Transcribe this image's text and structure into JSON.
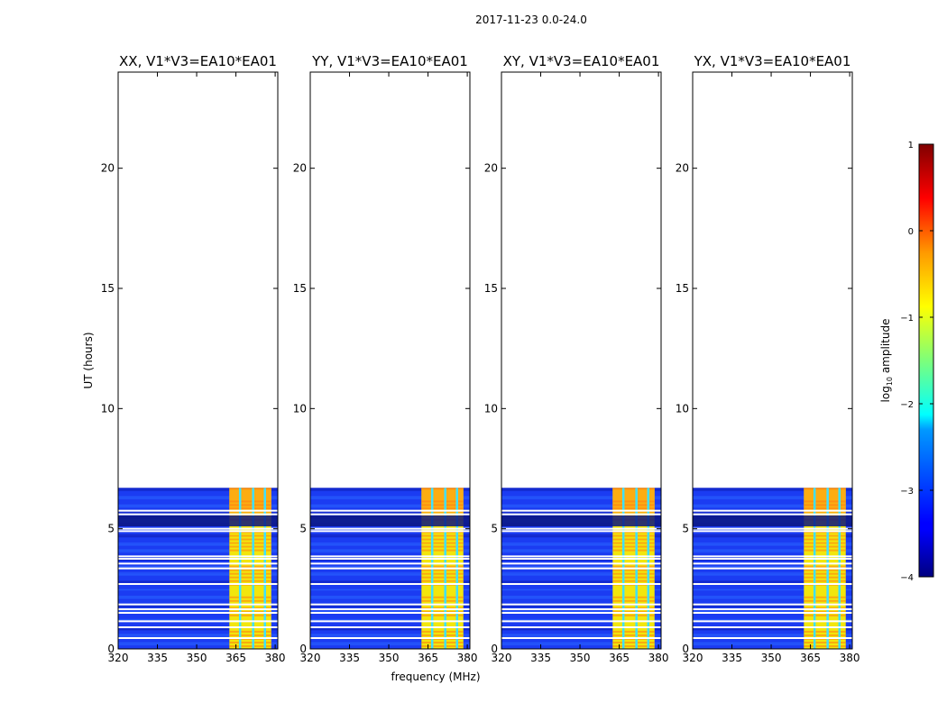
{
  "suptitle": "2017-11-23 0.0-24.0",
  "chart_data": {
    "type": "heatmap",
    "xlabel": "frequency (MHz)",
    "ylabel": "UT (hours)",
    "xlim": [
      320,
      381
    ],
    "ylim": [
      0,
      24
    ],
    "xticks": [
      320,
      335,
      350,
      365,
      380
    ],
    "yticks": [
      0,
      5,
      10,
      15,
      20
    ],
    "data_time_range_hours": [
      0,
      6.7
    ],
    "strong_signal_band_mhz": [
      363.5,
      380
    ],
    "blank_rows_ut_hours": [
      0.45,
      0.9,
      1.15,
      1.5,
      1.65,
      1.85,
      2.7,
      3.35,
      3.55,
      3.75,
      3.85,
      4.9,
      5.0,
      5.6,
      5.75
    ],
    "panels": [
      {
        "title": "XX, V1*V3=EA10*EA01",
        "band_mhz": [
          362.5,
          378.5
        ],
        "xtick_labels": [
          "320",
          "335",
          "350",
          "365",
          "380"
        ],
        "ytick_labels": [
          "0",
          "5",
          "10",
          "15",
          "20"
        ]
      },
      {
        "title": "YY, V1*V3=EA10*EA01",
        "band_mhz": [
          362.5,
          378.5
        ],
        "xtick_labels": [
          "320",
          "335",
          "350",
          "365",
          "380"
        ],
        "ytick_labels": [
          "0",
          "5",
          "10",
          "15",
          "20"
        ]
      },
      {
        "title": "XY, V1*V3=EA10*EA01",
        "band_mhz": [
          362.5,
          378.5
        ],
        "xtick_labels": [
          "320",
          "335",
          "350",
          "365",
          "380"
        ],
        "ytick_labels": [
          "0",
          "5",
          "10",
          "15",
          "20"
        ]
      },
      {
        "title": "YX, V1*V3=EA10*EA01",
        "band_mhz": [
          362.5,
          378.5
        ],
        "xtick_labels": [
          "320",
          "335",
          "350",
          "365",
          "380"
        ],
        "ytick_labels": [
          "0",
          "5",
          "10",
          "15",
          "20"
        ]
      }
    ],
    "colorbar": {
      "label": "log",
      "label_sub": "10",
      "label_rest": " amplitude",
      "colormap": "jet",
      "range": [
        -4,
        1
      ],
      "ticks": [
        1,
        0,
        -1,
        -2,
        -3,
        -4
      ],
      "tick_labels": [
        "1",
        "0",
        "−1",
        "−2",
        "−3",
        "−4"
      ]
    }
  }
}
